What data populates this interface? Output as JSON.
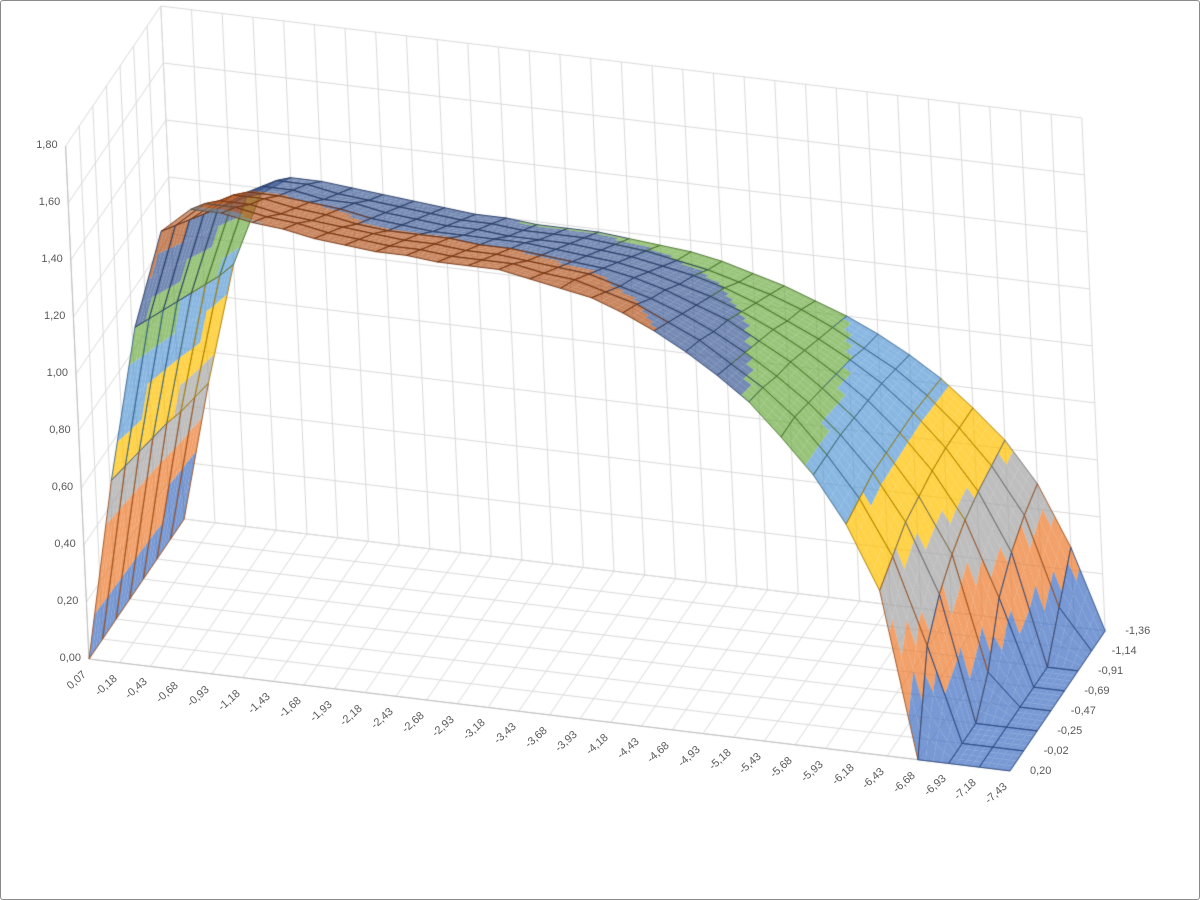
{
  "window": {
    "background": "#FFFFFF",
    "border_color": "#8A8A8A"
  },
  "chart_data": {
    "type": "surface3d",
    "title": "",
    "x_categories": [
      "0,07",
      "-0,18",
      "-0,43",
      "-0,68",
      "-0,93",
      "-1,18",
      "-1,43",
      "-1,68",
      "-1,93",
      "-2,18",
      "-2,43",
      "-2,68",
      "-2,93",
      "-3,18",
      "-3,43",
      "-3,68",
      "-3,93",
      "-4,18",
      "-4,43",
      "-4,68",
      "-4,93",
      "-5,18",
      "-5,43",
      "-5,68",
      "-5,93",
      "-6,18",
      "-6,43",
      "-6,68",
      "-6,93",
      "-7,18",
      "-7,43"
    ],
    "x_values": [
      0.07,
      -0.18,
      -0.43,
      -0.68,
      -0.93,
      -1.18,
      -1.43,
      -1.68,
      -1.93,
      -2.18,
      -2.43,
      -2.68,
      -2.93,
      -3.18,
      -3.43,
      -3.68,
      -3.93,
      -4.18,
      -4.43,
      -4.68,
      -4.93,
      -5.18,
      -5.43,
      -5.68,
      -5.93,
      -6.18,
      -6.43,
      -6.68,
      -6.93,
      -7.18,
      -7.43
    ],
    "depth_axis_labels_top_to_bottom": [
      "-1,36",
      "-1,14",
      "-0,91",
      "-0,69",
      "-0,47",
      "-0,25",
      "-0,02",
      "0,20"
    ],
    "series": [
      {
        "name": "0,20",
        "y": 0.2,
        "values": [
          0,
          0.64,
          1.19,
          1.54,
          1.63,
          1.63,
          1.61,
          1.6,
          1.58,
          1.57,
          1.56,
          1.56,
          1.55,
          1.55,
          1.55,
          1.53,
          1.51,
          1.49,
          1.45,
          1.4,
          1.34,
          1.27,
          1.19,
          1.08,
          0.96,
          0.8,
          0.58,
          0,
          0,
          0,
          0
        ]
      },
      {
        "name": "-0,02",
        "y": -0.02,
        "values": [
          0,
          0.62,
          1.15,
          1.49,
          1.58,
          1.58,
          1.56,
          1.55,
          1.53,
          1.52,
          1.51,
          1.51,
          1.5,
          1.5,
          1.5,
          1.48,
          1.47,
          1.44,
          1.41,
          1.36,
          1.31,
          1.24,
          1.17,
          1.08,
          0.96,
          0.82,
          0.63,
          0.33,
          0,
          0,
          0
        ]
      },
      {
        "name": "-0,25",
        "y": -0.25,
        "values": [
          0,
          0.6,
          1.11,
          1.44,
          1.52,
          1.52,
          1.5,
          1.49,
          1.48,
          1.47,
          1.46,
          1.46,
          1.45,
          1.45,
          1.44,
          1.43,
          1.42,
          1.39,
          1.36,
          1.32,
          1.27,
          1.21,
          1.14,
          1.06,
          0.96,
          0.84,
          0.68,
          0.44,
          0,
          0,
          0
        ]
      },
      {
        "name": "-0,47",
        "y": -0.47,
        "values": [
          0,
          0.58,
          1.07,
          1.39,
          1.47,
          1.47,
          1.45,
          1.44,
          1.42,
          1.41,
          1.41,
          1.41,
          1.4,
          1.4,
          1.39,
          1.38,
          1.37,
          1.35,
          1.32,
          1.28,
          1.24,
          1.18,
          1.12,
          1.04,
          0.95,
          0.84,
          0.7,
          0.51,
          0.11,
          0,
          0
        ]
      },
      {
        "name": "-0,69",
        "y": -0.69,
        "values": [
          0,
          0.56,
          1.03,
          1.34,
          1.41,
          1.41,
          1.4,
          1.39,
          1.37,
          1.36,
          1.35,
          1.35,
          1.35,
          1.35,
          1.34,
          1.33,
          1.32,
          1.3,
          1.27,
          1.24,
          1.2,
          1.15,
          1.09,
          1.02,
          0.94,
          0.84,
          0.72,
          0.56,
          0.3,
          0,
          0
        ]
      },
      {
        "name": "-0,91",
        "y": -0.91,
        "values": [
          0,
          0.53,
          0.99,
          1.29,
          1.36,
          1.36,
          1.34,
          1.34,
          1.32,
          1.31,
          1.3,
          1.3,
          1.29,
          1.29,
          1.29,
          1.28,
          1.27,
          1.25,
          1.23,
          1.2,
          1.16,
          1.11,
          1.06,
          1.0,
          0.93,
          0.84,
          0.73,
          0.59,
          0.39,
          0,
          0
        ]
      },
      {
        "name": "-1,14",
        "y": -1.14,
        "values": [
          0,
          0.51,
          0.95,
          1.24,
          1.31,
          1.31,
          1.29,
          1.28,
          1.27,
          1.26,
          1.25,
          1.25,
          1.24,
          1.24,
          1.24,
          1.23,
          1.22,
          1.2,
          1.18,
          1.15,
          1.12,
          1.08,
          1.03,
          0.97,
          0.91,
          0.83,
          0.73,
          0.61,
          0.45,
          0.14,
          0
        ]
      },
      {
        "name": "-1,36",
        "y": -1.36,
        "values": [
          0,
          0.49,
          0.92,
          1.18,
          1.25,
          1.25,
          1.24,
          1.23,
          1.22,
          1.21,
          1.2,
          1.2,
          1.19,
          1.19,
          1.19,
          1.18,
          1.17,
          1.16,
          1.14,
          1.11,
          1.08,
          1.04,
          1.0,
          0.95,
          0.89,
          0.82,
          0.73,
          0.63,
          0.49,
          0.28,
          0
        ]
      }
    ],
    "value_axis": {
      "min": 0,
      "max": 1.8,
      "major_unit": 0.2,
      "tick_labels": [
        "0,00",
        "0,20",
        "0,40",
        "0,60",
        "0,80",
        "1,00",
        "1,20",
        "1,40",
        "1,60",
        "1,80"
      ]
    },
    "bands": [
      {
        "min": 0.0,
        "max": 0.2,
        "fill": "#4472C4",
        "line": "#2C4A7F"
      },
      {
        "min": 0.2,
        "max": 0.4,
        "fill": "#ED7D31",
        "line": "#9A5120"
      },
      {
        "min": 0.4,
        "max": 0.6,
        "fill": "#A5A5A5",
        "line": "#6B6B6B"
      },
      {
        "min": 0.6,
        "max": 0.8,
        "fill": "#FFC000",
        "line": "#A67D00"
      },
      {
        "min": 0.8,
        "max": 1.0,
        "fill": "#5B9BD5",
        "line": "#3B658A"
      },
      {
        "min": 1.0,
        "max": 1.2,
        "fill": "#70AD47",
        "line": "#49702E"
      },
      {
        "min": 1.2,
        "max": 1.4,
        "fill": "#3F5C96",
        "line": "#2A3D64"
      },
      {
        "min": 1.4,
        "max": 1.6,
        "fill": "#B1541E",
        "line": "#713413"
      },
      {
        "min": 1.6,
        "max": 1.8,
        "fill": "#808080",
        "line": "#525252"
      }
    ],
    "surface_alpha": 0.72,
    "colors": {
      "gridline": "#D9D9D9",
      "axis_line": "#BFBFBF",
      "label": "#595959",
      "background": "#FFFFFF"
    },
    "legend": "none",
    "grid": "on"
  }
}
